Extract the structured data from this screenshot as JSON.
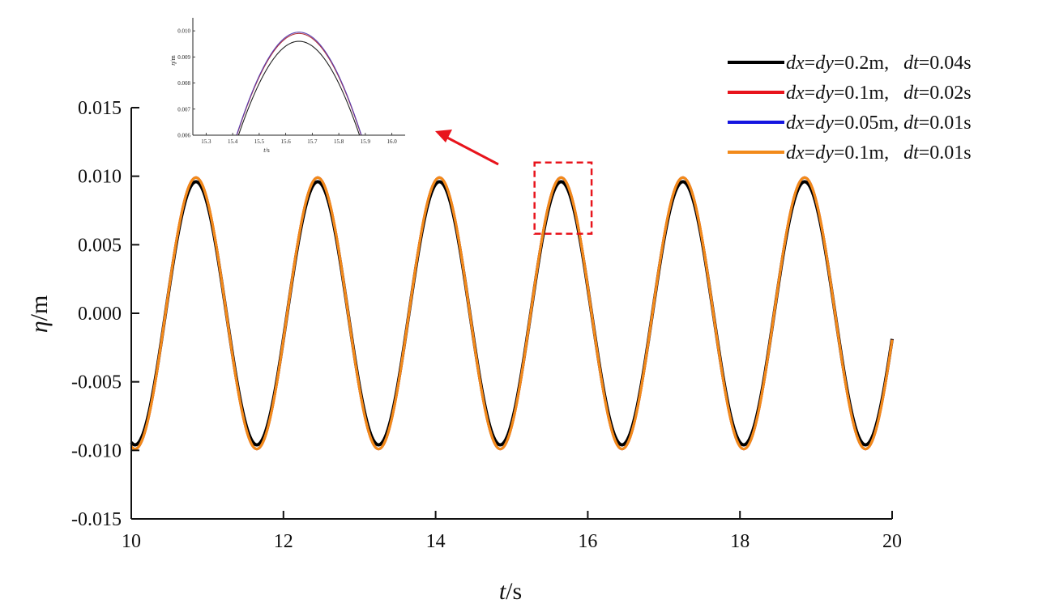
{
  "chart_data": [
    {
      "type": "line",
      "title": "",
      "xlabel_italic": "t",
      "xlabel_rest": "/s",
      "ylabel_italic": "η",
      "ylabel_rest": "/m",
      "xlim": [
        10,
        20
      ],
      "ylim": [
        -0.015,
        0.015
      ],
      "xticks": [
        10,
        12,
        14,
        16,
        18,
        20
      ],
      "xtick_labels": [
        "10",
        "12",
        "14",
        "16",
        "18",
        "20"
      ],
      "yticks": [
        -0.015,
        -0.01,
        -0.005,
        0.0,
        0.005,
        0.01,
        0.015
      ],
      "ytick_labels": [
        "-0.015",
        "-0.010",
        "-0.005",
        "0.000",
        "0.005",
        "0.010",
        "0.015"
      ],
      "grid": false,
      "legend_position": "top-right",
      "wave": {
        "period": 1.6,
        "first_peak_t": 10.85,
        "t_start": 10,
        "t_end": 20
      },
      "series": [
        {
          "label_parts": [
            [
              "dx",
              true
            ],
            [
              "=",
              false
            ],
            [
              "dy",
              true
            ],
            [
              "=0.2m,   ",
              false
            ],
            [
              "dt",
              true
            ],
            [
              "=0.04s",
              false
            ]
          ],
          "color": "#000000",
          "amplitude": 0.0096,
          "phase_shift": 0.0
        },
        {
          "label_parts": [
            [
              "dx",
              true
            ],
            [
              "=",
              false
            ],
            [
              "dy",
              true
            ],
            [
              "=0.1m,   ",
              false
            ],
            [
              "dt",
              true
            ],
            [
              "=0.02s",
              false
            ]
          ],
          "color": "#e8141c",
          "amplitude": 0.0099,
          "phase_shift": 0.0
        },
        {
          "label_parts": [
            [
              "dx",
              true
            ],
            [
              "=",
              false
            ],
            [
              "dy",
              true
            ],
            [
              "=0.05m, ",
              false
            ],
            [
              "dt",
              true
            ],
            [
              "=0.01s",
              false
            ]
          ],
          "color": "#1515e0",
          "amplitude": 0.0099,
          "phase_shift": 0.0
        },
        {
          "label_parts": [
            [
              "dx",
              true
            ],
            [
              "=",
              false
            ],
            [
              "dy",
              true
            ],
            [
              "=0.1m,   ",
              false
            ],
            [
              "dt",
              true
            ],
            [
              "=0.01s",
              false
            ]
          ],
          "color": "#f28a1a",
          "amplitude": 0.0099,
          "phase_shift": 0.0
        }
      ],
      "zoom_region": {
        "x": [
          15.3,
          16.05
        ],
        "y": [
          0.0058,
          0.011
        ]
      }
    },
    {
      "type": "line",
      "title": "",
      "xlabel_italic": "t",
      "xlabel_rest": "/s",
      "ylabel_italic": "η",
      "ylabel_rest": "/m",
      "xlim": [
        15.25,
        16.05
      ],
      "ylim": [
        0.006,
        0.0105
      ],
      "xticks": [
        15.3,
        15.4,
        15.5,
        15.6,
        15.7,
        15.8,
        15.9,
        16.0
      ],
      "xtick_labels": [
        "15.3",
        "15.4",
        "15.5",
        "15.6",
        "15.7",
        "15.8",
        "15.9",
        "16.0"
      ],
      "yticks": [
        0.006,
        0.007,
        0.008,
        0.009,
        0.01
      ],
      "ytick_labels": [
        "0.006",
        "0.007",
        "0.008",
        "0.009",
        "0.010"
      ],
      "series_colors": [
        "#222222",
        "#b0303a",
        "#5a3fb0"
      ],
      "series_amplitudes": [
        0.0096,
        0.0099,
        0.00995
      ]
    }
  ],
  "colors": {
    "axis": "#111111",
    "zoom_box": "#e8141c",
    "arrow": "#e8141c"
  }
}
